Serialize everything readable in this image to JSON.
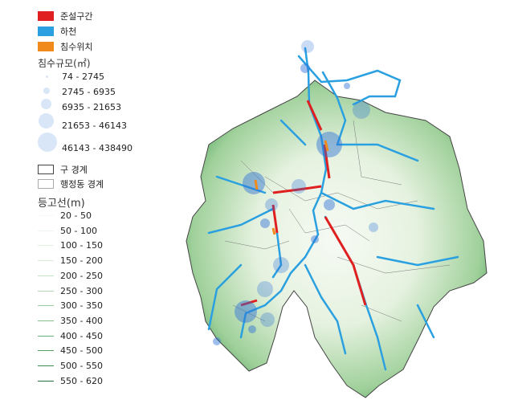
{
  "legend": {
    "dredging": {
      "label": "준설구간",
      "color": "#e02020"
    },
    "river": {
      "label": "하천",
      "color": "#2aa0e0"
    },
    "flood_location": {
      "label": "침수위치",
      "color": "#f08a1c"
    },
    "flood_scale_title": "침수규모(㎡)",
    "flood_scale": [
      "74 - 2745",
      "2745 - 6935",
      "6935 - 21653",
      "21653 - 46143",
      "46143 - 438490"
    ],
    "gu_boundary": "구 경계",
    "dong_boundary": "행정동 경계",
    "contour_title": "등고선(m)",
    "contours": [
      "20 - 50",
      "50 - 100",
      "100 - 150",
      "150 - 200",
      "200 - 250",
      "250 - 300",
      "300 - 350",
      "350 - 400",
      "400 - 450",
      "450 - 500",
      "500 - 550",
      "550 - 620"
    ],
    "contour_colors": [
      "#f4f8f4",
      "#eef5ee",
      "#e4f0e4",
      "#d6ead6",
      "#c6e2c6",
      "#b2d8b6",
      "#9cccA2",
      "#84be8c",
      "#6cae76",
      "#559e62",
      "#3f8a4e",
      "#2a6e3a"
    ]
  }
}
